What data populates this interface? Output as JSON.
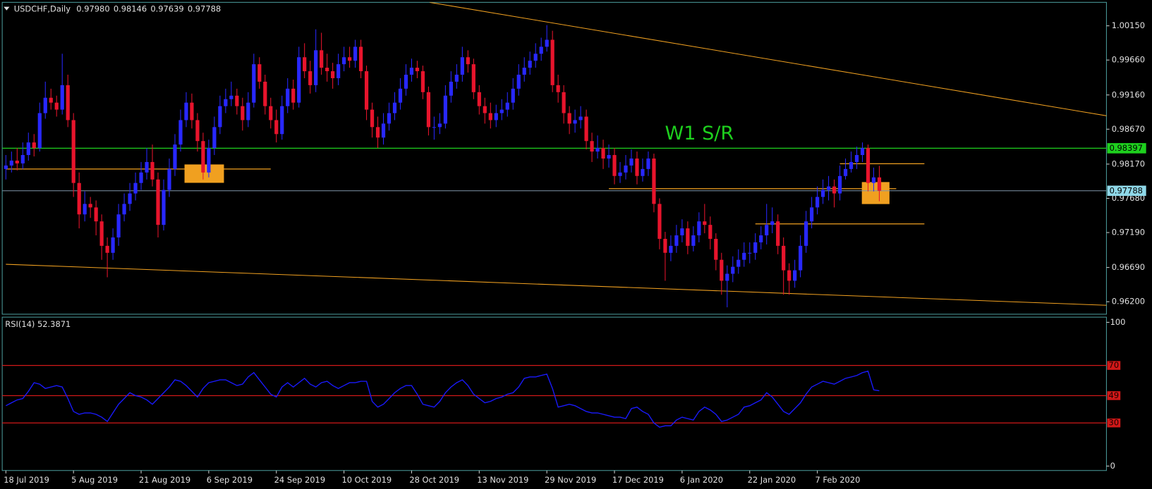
{
  "chart_data": {
    "type": "candlestick",
    "symbol": "USDCHF,Daily",
    "quote": [
      "0.97980",
      "0.98146",
      "0.97639",
      "0.97788"
    ],
    "up_color": "#2828ff",
    "down_color": "#e8142c",
    "categories": [
      "18 Jul 2019",
      null,
      null,
      null,
      null,
      null,
      null,
      null,
      null,
      null,
      null,
      null,
      "5 Aug 2019",
      null,
      null,
      null,
      null,
      null,
      null,
      null,
      null,
      null,
      null,
      null,
      "21 Aug 2019",
      null,
      null,
      null,
      null,
      null,
      null,
      null,
      null,
      null,
      null,
      null,
      "6 Sep 2019",
      null,
      null,
      null,
      null,
      null,
      null,
      null,
      null,
      null,
      null,
      null,
      "24 Sep 2019",
      null,
      null,
      null,
      null,
      null,
      null,
      null,
      null,
      null,
      null,
      null,
      "10 Oct 2019",
      null,
      null,
      null,
      null,
      null,
      null,
      null,
      null,
      null,
      null,
      null,
      "28 Oct 2019",
      null,
      null,
      null,
      null,
      null,
      null,
      null,
      null,
      null,
      null,
      null,
      "13 Nov 2019",
      null,
      null,
      null,
      null,
      null,
      null,
      null,
      null,
      null,
      null,
      null,
      "29 Nov 2019",
      null,
      null,
      null,
      null,
      null,
      null,
      null,
      null,
      null,
      null,
      null,
      "17 Dec 2019",
      null,
      null,
      null,
      null,
      null,
      null,
      null,
      null,
      null,
      null,
      null,
      "6 Jan 2020",
      null,
      null,
      null,
      null,
      null,
      null,
      null,
      null,
      null,
      null,
      null,
      "22 Jan 2020",
      null,
      null,
      null,
      null,
      null,
      null,
      null,
      null,
      null,
      null,
      null,
      "7 Feb 2020",
      null,
      null,
      null,
      null,
      null,
      null,
      null,
      null,
      null,
      null,
      null
    ],
    "first_open": 0.981,
    "close": [
      0.9815,
      0.9822,
      0.9818,
      0.983,
      0.9848,
      0.984,
      0.989,
      0.9912,
      0.9905,
      0.9895,
      0.993,
      0.988,
      0.979,
      0.9745,
      0.976,
      0.9755,
      0.9735,
      0.97,
      0.969,
      0.9712,
      0.9745,
      0.976,
      0.9775,
      0.979,
      0.9805,
      0.982,
      0.9795,
      0.973,
      0.978,
      0.981,
      0.9845,
      0.988,
      0.9905,
      0.988,
      0.985,
      0.9805,
      0.984,
      0.987,
      0.99,
      0.991,
      0.9915,
      0.99,
      0.988,
      0.9905,
      0.996,
      0.9935,
      0.99,
      0.988,
      0.986,
      0.99,
      0.9925,
      0.9905,
      0.997,
      0.995,
      0.993,
      0.998,
      0.9955,
      0.995,
      0.994,
      0.996,
      0.997,
      0.9965,
      0.9985,
      0.995,
      0.9895,
      0.987,
      0.9855,
      0.9875,
      0.989,
      0.9905,
      0.9925,
      0.9945,
      0.9955,
      0.995,
      0.992,
      0.987,
      0.987,
      0.9875,
      0.9915,
      0.9935,
      0.9945,
      0.997,
      0.996,
      0.992,
      0.99,
      0.989,
      0.988,
      0.989,
      0.9895,
      0.9905,
      0.9925,
      0.9945,
      0.9955,
      0.9965,
      0.9975,
      0.9985,
      0.9995,
      0.993,
      0.992,
      0.989,
      0.9875,
      0.988,
      0.9885,
      0.985,
      0.9835,
      0.984,
      0.9825,
      0.983,
      0.98,
      0.9805,
      0.9815,
      0.9825,
      0.98,
      0.981,
      0.9825,
      0.976,
      0.971,
      0.969,
      0.97,
      0.9715,
      0.9725,
      0.97,
      0.9715,
      0.9735,
      0.973,
      0.971,
      0.968,
      0.965,
      0.966,
      0.967,
      0.968,
      0.969,
      0.969,
      0.9705,
      0.9715,
      0.973,
      0.9735,
      0.97,
      0.9665,
      0.965,
      0.9665,
      0.97,
      0.9735,
      0.9755,
      0.977,
      0.978,
      0.9785,
      0.9775,
      0.98,
      0.981,
      0.982,
      0.983,
      0.984,
      0.979,
      0.9798,
      0.97788
    ],
    "high": [
      0.983,
      0.9835,
      0.984,
      0.9848,
      0.9862,
      0.986,
      0.9905,
      0.9935,
      0.9925,
      0.9915,
      0.9975,
      0.9945,
      0.989,
      0.9805,
      0.9778,
      0.977,
      0.9765,
      0.9745,
      0.9712,
      0.9725,
      0.976,
      0.9775,
      0.979,
      0.9805,
      0.982,
      0.984,
      0.9845,
      0.9805,
      0.9795,
      0.9825,
      0.986,
      0.9895,
      0.992,
      0.9918,
      0.989,
      0.9862,
      0.9852,
      0.9885,
      0.9915,
      0.9925,
      0.9935,
      0.9925,
      0.9912,
      0.992,
      0.9975,
      0.997,
      0.9945,
      0.9912,
      0.9895,
      0.9915,
      0.994,
      0.9938,
      0.9985,
      0.999,
      0.9965,
      1.001,
      1.0005,
      0.9975,
      0.9962,
      0.9975,
      0.9985,
      0.9985,
      0.9995,
      0.9995,
      0.9958,
      0.9905,
      0.9885,
      0.989,
      0.9905,
      0.992,
      0.994,
      0.996,
      0.9968,
      0.9965,
      0.9958,
      0.9928,
      0.9885,
      0.989,
      0.993,
      0.995,
      0.996,
      0.9985,
      0.998,
      0.9968,
      0.993,
      0.9912,
      0.9905,
      0.9902,
      0.991,
      0.992,
      0.994,
      0.996,
      0.997,
      0.9978,
      0.999,
      0.9998,
      1.0016,
      1.0008,
      0.9945,
      0.993,
      0.99,
      0.9895,
      0.99,
      0.9895,
      0.9862,
      0.9858,
      0.9852,
      0.9845,
      0.984,
      0.982,
      0.983,
      0.9838,
      0.9835,
      0.9825,
      0.9835,
      0.9832,
      0.9768,
      0.972,
      0.9715,
      0.973,
      0.9738,
      0.9735,
      0.9728,
      0.9748,
      0.976,
      0.9742,
      0.9718,
      0.969,
      0.9672,
      0.9685,
      0.9695,
      0.9705,
      0.9705,
      0.9718,
      0.9728,
      0.976,
      0.9755,
      0.9745,
      0.9712,
      0.9675,
      0.968,
      0.9715,
      0.975,
      0.977,
      0.9785,
      0.9795,
      0.98,
      0.9795,
      0.9815,
      0.9825,
      0.9835,
      0.9842,
      0.9848,
      0.9845,
      0.9812,
      0.98146
    ],
    "low": [
      0.9795,
      0.9805,
      0.9808,
      0.981,
      0.9822,
      0.9828,
      0.9835,
      0.9882,
      0.9895,
      0.9885,
      0.9888,
      0.987,
      0.977,
      0.9725,
      0.9735,
      0.974,
      0.9715,
      0.968,
      0.9655,
      0.968,
      0.97,
      0.9735,
      0.975,
      0.9765,
      0.978,
      0.9795,
      0.9785,
      0.9712,
      0.9722,
      0.977,
      0.98,
      0.9835,
      0.987,
      0.9868,
      0.9835,
      0.9795,
      0.9798,
      0.983,
      0.986,
      0.989,
      0.99,
      0.9888,
      0.9865,
      0.987,
      0.9898,
      0.9925,
      0.9888,
      0.9868,
      0.9848,
      0.9852,
      0.989,
      0.9895,
      0.9898,
      0.994,
      0.9918,
      0.992,
      0.9945,
      0.9935,
      0.9925,
      0.993,
      0.995,
      0.9955,
      0.9955,
      0.994,
      0.988,
      0.9855,
      0.984,
      0.9845,
      0.9865,
      0.988,
      0.9895,
      0.9915,
      0.9935,
      0.994,
      0.991,
      0.9858,
      0.9852,
      0.986,
      0.9868,
      0.9905,
      0.9925,
      0.9935,
      0.9948,
      0.991,
      0.9888,
      0.9875,
      0.9868,
      0.987,
      0.988,
      0.9885,
      0.9895,
      0.9915,
      0.9935,
      0.9945,
      0.9955,
      0.9965,
      0.9978,
      0.992,
      0.9905,
      0.9875,
      0.986,
      0.9862,
      0.9868,
      0.9838,
      0.982,
      0.9825,
      0.981,
      0.9812,
      0.9788,
      0.979,
      0.9795,
      0.9805,
      0.9788,
      0.9792,
      0.98,
      0.9748,
      0.9695,
      0.965,
      0.9678,
      0.969,
      0.9705,
      0.9688,
      0.9692,
      0.9705,
      0.9718,
      0.9695,
      0.9665,
      0.963,
      0.9612,
      0.9648,
      0.966,
      0.967,
      0.9675,
      0.968,
      0.9695,
      0.9702,
      0.9718,
      0.9688,
      0.963,
      0.963,
      0.964,
      0.9655,
      0.969,
      0.9725,
      0.9745,
      0.976,
      0.9765,
      0.9755,
      0.9765,
      0.9795,
      0.9805,
      0.981,
      0.982,
      0.9778,
      0.9778,
      0.97639
    ],
    "ylim": [
      0.96021,
      1.00486
    ],
    "yticks": [
      {
        "value": 1.0015,
        "label": "1.00150"
      },
      {
        "value": 0.9966,
        "label": "0.99660"
      },
      {
        "value": 0.9916,
        "label": "0.99160"
      },
      {
        "value": 0.9867,
        "label": "0.98670"
      },
      {
        "value": 0.9817,
        "label": "0.98170"
      },
      {
        "value": 0.9768,
        "label": "0.97680"
      },
      {
        "value": 0.9719,
        "label": "0.97190"
      },
      {
        "value": 0.9669,
        "label": "0.96690"
      },
      {
        "value": 0.962,
        "label": "0.96200"
      }
    ],
    "sr_line": {
      "value": 0.98397,
      "label": "0.98397",
      "text": "W1 S/R",
      "color": "#1ed01e"
    },
    "last_price": {
      "value": 0.97788,
      "label": "0.97788",
      "color": "#8fd8e8"
    },
    "drawing_color": "#f0a020",
    "trendlines": [
      {
        "from": [
          75.2,
          1.00486
        ],
        "to": [
          195.6,
          0.98858
        ]
      },
      {
        "from": [
          0,
          0.96736
        ],
        "to": [
          195.6,
          0.96148
        ]
      }
    ],
    "segments": [
      {
        "from": [
          0,
          0.981
        ],
        "to": [
          47,
          0.981
        ]
      },
      {
        "from": [
          107,
          0.97818
        ],
        "to": [
          158,
          0.97818
        ]
      },
      {
        "from": [
          148,
          0.98175
        ],
        "to": [
          163,
          0.98175
        ]
      },
      {
        "from": [
          133,
          0.97314
        ],
        "to": [
          163,
          0.97314
        ]
      }
    ],
    "boxes": [
      {
        "from": [
          31.7,
          0.98165
        ],
        "to": [
          38.7,
          0.97902
        ]
      },
      {
        "from": [
          151.9,
          0.97913
        ],
        "to": [
          156.8,
          0.97598
        ]
      }
    ],
    "rsi": {
      "label": "RSI(14) 52.3871",
      "color": "#1a1aff",
      "level_color": "#d01818",
      "ylim": [
        -3.1,
        103.6
      ],
      "yticks": [
        0,
        100
      ],
      "levels": [
        70,
        49,
        30
      ],
      "values": [
        42,
        44,
        46,
        47,
        52,
        58,
        57,
        54,
        55,
        56,
        55,
        47,
        38,
        36,
        37,
        37,
        36,
        34,
        31,
        37,
        43,
        47,
        51,
        49,
        48,
        46,
        43,
        47,
        51,
        55,
        60,
        59,
        56,
        52,
        48,
        54,
        58,
        59,
        60,
        60,
        58,
        56,
        57,
        62,
        65,
        60,
        55,
        50,
        48,
        55,
        58,
        55,
        58,
        61,
        57,
        55,
        58,
        59,
        56,
        54,
        56,
        58,
        58,
        59,
        59,
        45,
        41,
        43,
        47,
        51,
        54,
        56,
        56,
        50,
        43,
        42,
        41,
        45,
        51,
        55,
        58,
        60,
        56,
        50,
        47,
        44,
        45,
        47,
        48,
        50,
        51,
        55,
        61,
        62,
        62,
        63,
        64,
        54,
        41,
        42,
        43,
        42,
        40,
        38,
        37,
        37,
        36,
        35,
        34,
        34,
        33,
        40,
        41,
        38,
        36,
        30,
        27,
        28,
        28,
        32,
        34,
        33,
        32,
        38,
        41,
        39,
        36,
        31,
        32,
        34,
        36,
        41,
        42,
        44,
        46,
        51,
        48,
        43,
        38,
        36,
        40,
        44,
        50,
        55,
        57,
        59,
        58,
        57,
        59,
        61,
        62,
        63,
        65,
        66,
        53,
        52.3871
      ]
    }
  }
}
